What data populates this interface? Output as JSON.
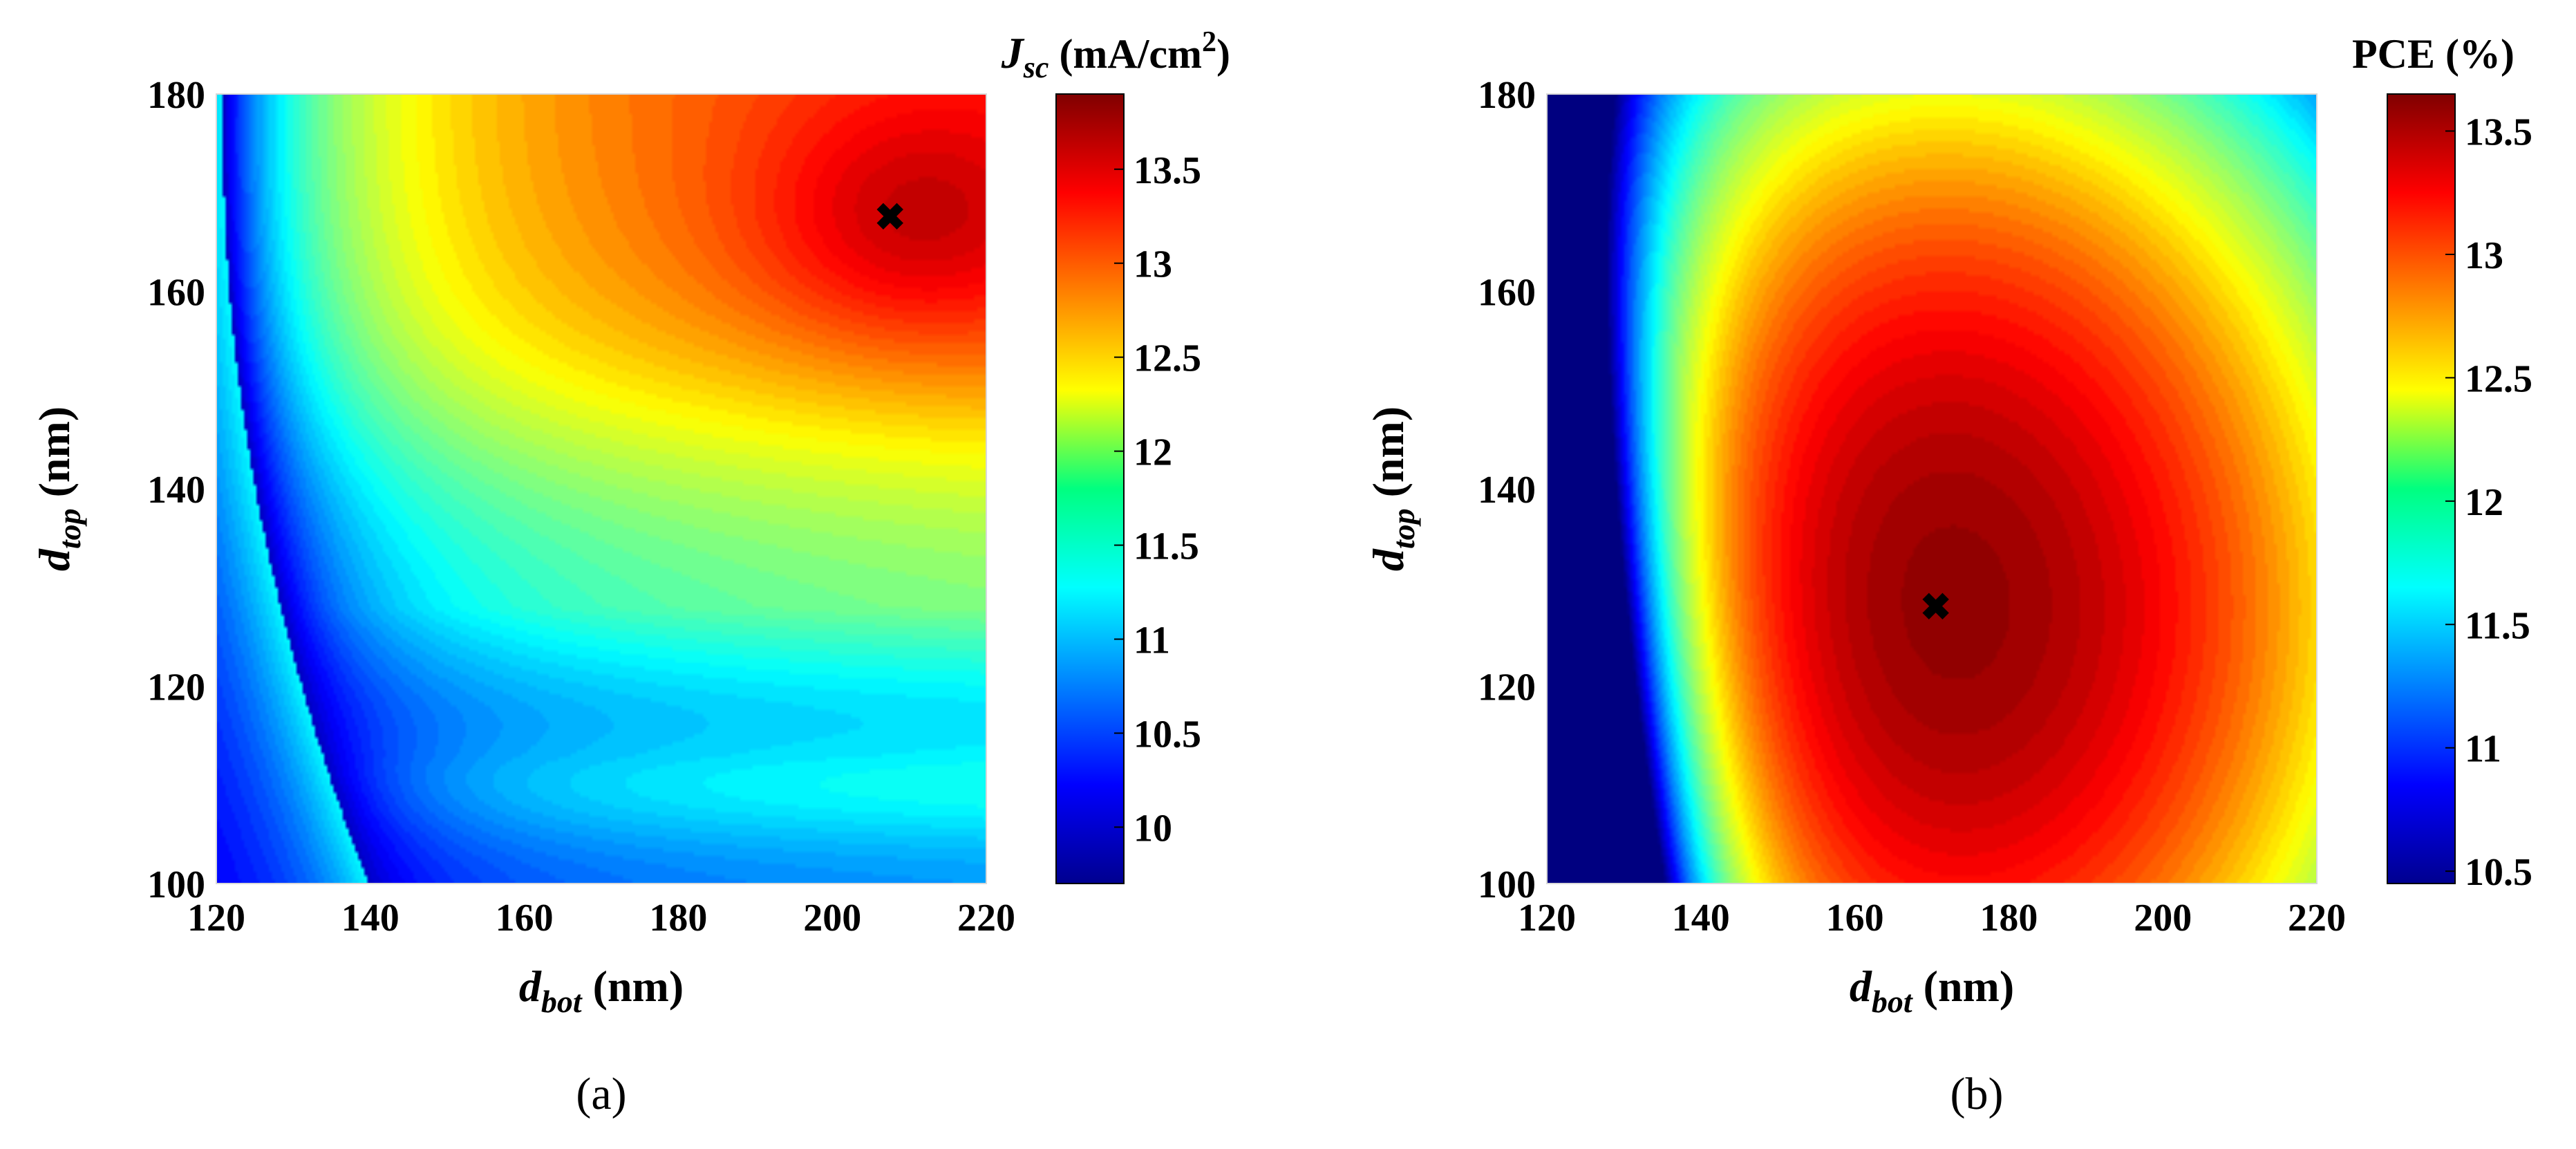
{
  "chart_data": [
    {
      "type": "heatmap",
      "panel_label": "(a)",
      "title": "",
      "xlabel": {
        "main": "d",
        "sub": "bot",
        "unit": " (nm)"
      },
      "ylabel": {
        "main": "d",
        "sub": "top",
        "unit": " (nm)"
      },
      "xlim": [
        120,
        220
      ],
      "ylim": [
        100,
        180
      ],
      "xticks": [
        "120",
        "140",
        "160",
        "180",
        "200",
        "220"
      ],
      "yticks": [
        "100",
        "120",
        "140",
        "160",
        "180"
      ],
      "colorbar": {
        "title_main": "J",
        "title_sub": "sc",
        "title_unit": " (mA/cm",
        "title_sup": "2",
        "title_close": ")",
        "range": [
          9.7,
          13.9
        ],
        "ticks": [
          "10",
          "10.5",
          "11",
          "11.5",
          "12",
          "12.5",
          "13",
          "13.5"
        ]
      },
      "marker": {
        "x": 207.5,
        "y": 167.5,
        "symbol": "✖",
        "label": "maximum J_sc"
      },
      "model": "jsc"
    },
    {
      "type": "heatmap",
      "panel_label": "(b)",
      "title": "",
      "xlabel": {
        "main": "d",
        "sub": "bot",
        "unit": " (nm)"
      },
      "ylabel": {
        "main": "d",
        "sub": "top",
        "unit": " (nm)"
      },
      "xlim": [
        120,
        220
      ],
      "ylim": [
        100,
        180
      ],
      "xticks": [
        "120",
        "140",
        "160",
        "180",
        "200",
        "220"
      ],
      "yticks": [
        "100",
        "120",
        "140",
        "160",
        "180"
      ],
      "colorbar": {
        "title_main": "PCE (%)",
        "title_sub": "",
        "title_unit": "",
        "title_sup": "",
        "title_close": "",
        "range": [
          10.45,
          13.65
        ],
        "ticks": [
          "10.5",
          "11",
          "11.5",
          "12",
          "12.5",
          "13",
          "13.5"
        ]
      },
      "marker": {
        "x": 170.5,
        "y": 128,
        "symbol": "✖",
        "label": "maximum PCE"
      },
      "model": "pce"
    }
  ]
}
